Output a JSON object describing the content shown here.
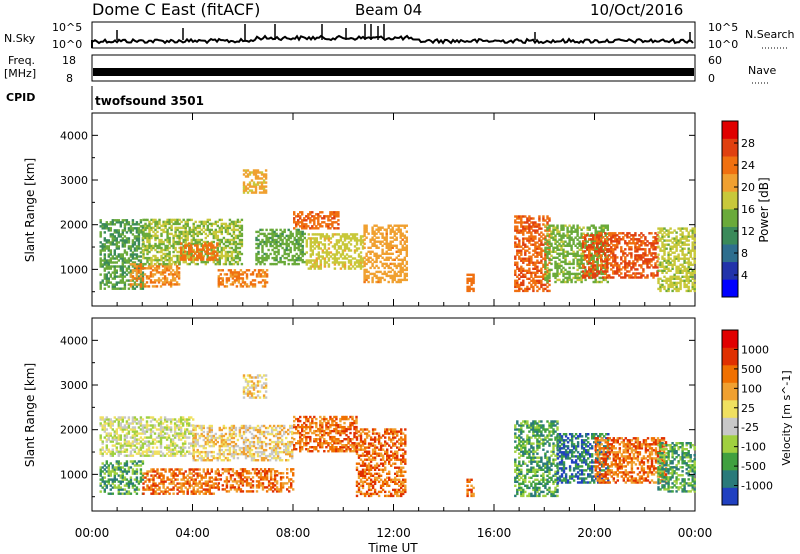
{
  "header": {
    "title": "Dome C East (fitACF)",
    "beam": "Beam 04",
    "date": "10/Oct/2016"
  },
  "summary_panels": {
    "nsky_label": "N.Sky",
    "nsearch_label": "N.Search",
    "nsky_ticks": [
      "10^5",
      "10^0"
    ],
    "nsearch_ticks": [
      "10^5",
      "10^0"
    ],
    "freq_label_line1": "Freq.",
    "freq_label_line2": "[MHz]",
    "freq_ticks": [
      "18",
      "8"
    ],
    "nave_label": "Nave",
    "nave_ticks": [
      "60",
      "0"
    ],
    "cpid_label": "CPID",
    "cpid_value": "twofsound 3501"
  },
  "colors": {
    "power_scale": [
      "#0000ff",
      "#2233aa",
      "#2e6e8e",
      "#3a8a5a",
      "#6aaa3a",
      "#c8c83a",
      "#f0a030",
      "#f07010",
      "#e04010",
      "#e00000"
    ],
    "velocity_scale": [
      "#2040c0",
      "#2a7a7a",
      "#40a040",
      "#a0d040",
      "#c8c8c8",
      "#f0e060",
      "#f0a030",
      "#f07000",
      "#e03000",
      "#e00000"
    ]
  },
  "chart_data": [
    {
      "type": "heatmap",
      "name": "power",
      "ylabel": "Slant Range [km]",
      "ylim": [
        180,
        4500
      ],
      "yticks": [
        "1000",
        "2000",
        "3000",
        "4000"
      ],
      "xlim": [
        0,
        24
      ],
      "colorbar_label": "Power [dB]",
      "colorbar_ticks": [
        "28",
        "24",
        "20",
        "16",
        "12",
        "8",
        "4"
      ],
      "clim": [
        0,
        32
      ],
      "regions": [
        {
          "t0": 0.3,
          "t1": 2.0,
          "r0": 550,
          "r1": 2100,
          "v": 13
        },
        {
          "t0": 1.5,
          "t1": 3.5,
          "r0": 600,
          "r1": 1100,
          "v": 22
        },
        {
          "t0": 2.0,
          "t1": 6.0,
          "r0": 1100,
          "r1": 2100,
          "v": 16
        },
        {
          "t0": 3.5,
          "t1": 5.0,
          "r0": 1200,
          "r1": 1600,
          "v": 24
        },
        {
          "t0": 5.0,
          "t1": 7.0,
          "r0": 600,
          "r1": 1000,
          "v": 23
        },
        {
          "t0": 6.0,
          "t1": 6.9,
          "r0": 2700,
          "r1": 3200,
          "v": 20
        },
        {
          "t0": 6.5,
          "t1": 8.5,
          "r0": 1100,
          "r1": 1900,
          "v": 14
        },
        {
          "t0": 8.0,
          "t1": 9.8,
          "r0": 1900,
          "r1": 2300,
          "v": 25
        },
        {
          "t0": 8.5,
          "t1": 10.8,
          "r0": 1000,
          "r1": 1800,
          "v": 18
        },
        {
          "t0": 10.8,
          "t1": 12.5,
          "r0": 700,
          "r1": 2000,
          "v": 21
        },
        {
          "t0": 14.9,
          "t1": 15.2,
          "r0": 500,
          "r1": 900,
          "v": 24
        },
        {
          "t0": 16.8,
          "t1": 18.2,
          "r0": 500,
          "r1": 2200,
          "v": 25
        },
        {
          "t0": 18.0,
          "t1": 20.5,
          "r0": 700,
          "r1": 2000,
          "v": 15
        },
        {
          "t0": 19.5,
          "t1": 22.5,
          "r0": 800,
          "r1": 1800,
          "v": 26
        },
        {
          "t0": 22.5,
          "t1": 24.0,
          "r0": 500,
          "r1": 1900,
          "v": 17
        }
      ]
    },
    {
      "type": "heatmap",
      "name": "velocity",
      "ylabel": "Slant Range [km]",
      "ylim": [
        180,
        4500
      ],
      "yticks": [
        "1000",
        "2000",
        "3000",
        "4000"
      ],
      "xlim": [
        0,
        24
      ],
      "xlabel": "Time UT",
      "xticks": [
        "00:00",
        "04:00",
        "08:00",
        "12:00",
        "16:00",
        "20:00",
        "00:00"
      ],
      "colorbar_label": "Velocity [m s^-1]",
      "colorbar_ticks": [
        "1000",
        "500",
        "100",
        "25",
        "-25",
        "-100",
        "-500",
        "-1000"
      ],
      "regions": [
        {
          "t0": 0.3,
          "t1": 4.0,
          "r0": 1400,
          "r1": 2300,
          "v": 4
        },
        {
          "t0": 0.3,
          "t1": 2.0,
          "r0": 550,
          "r1": 1300,
          "v": 2
        },
        {
          "t0": 2.0,
          "t1": 5.0,
          "r0": 550,
          "r1": 1100,
          "v": 7
        },
        {
          "t0": 4.0,
          "t1": 8.0,
          "r0": 1300,
          "r1": 2100,
          "v": 5
        },
        {
          "t0": 5.0,
          "t1": 8.0,
          "r0": 600,
          "r1": 1100,
          "v": 7
        },
        {
          "t0": 6.0,
          "t1": 6.9,
          "r0": 2700,
          "r1": 3200,
          "v": 5
        },
        {
          "t0": 8.0,
          "t1": 10.5,
          "r0": 1500,
          "r1": 2300,
          "v": 7
        },
        {
          "t0": 10.5,
          "t1": 12.5,
          "r0": 500,
          "r1": 2000,
          "v": 7
        },
        {
          "t0": 14.9,
          "t1": 15.2,
          "r0": 500,
          "r1": 900,
          "v": 7
        },
        {
          "t0": 16.8,
          "t1": 18.5,
          "r0": 500,
          "r1": 2200,
          "v": 2
        },
        {
          "t0": 18.5,
          "t1": 20.5,
          "r0": 800,
          "r1": 1900,
          "v": 1
        },
        {
          "t0": 20.0,
          "t1": 22.8,
          "r0": 800,
          "r1": 1800,
          "v": 7
        },
        {
          "t0": 22.5,
          "t1": 24.0,
          "r0": 600,
          "r1": 1700,
          "v": 2
        }
      ]
    }
  ]
}
